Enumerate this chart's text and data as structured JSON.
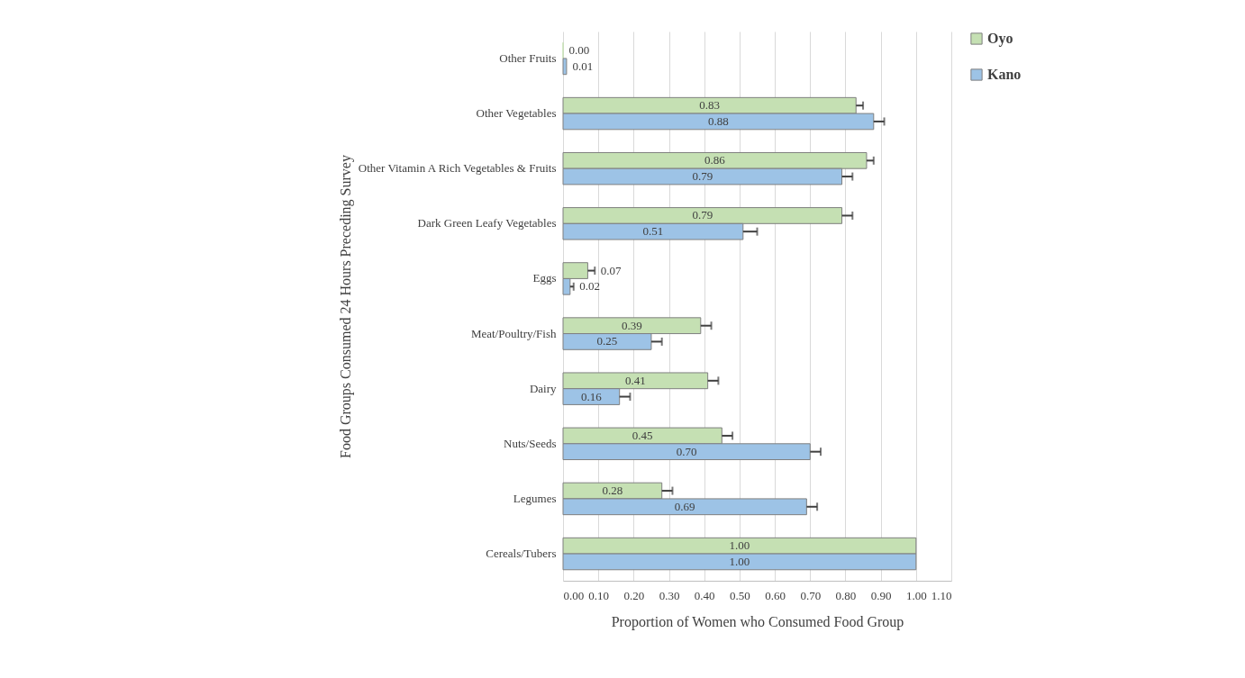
{
  "chart_data": {
    "type": "bar",
    "orientation": "horizontal",
    "xlabel": "Proportion of Women who Consumed Food Group",
    "ylabel": "Food Groups Consumed 24 Hours Preceding Survey",
    "categories": [
      "Other Fruits",
      "Other Vegetables",
      "Other Vitamin A Rich Vegetables & Fruits",
      "Dark Green Leafy Vegetables",
      "Eggs",
      "Meat/Poultry/Fish",
      "Dairy",
      "Nuts/Seeds",
      "Legumes",
      "Cereals/Tubers"
    ],
    "series": [
      {
        "name": "Oyo",
        "color": "#c5e0b3",
        "values": [
          0.0,
          0.83,
          0.86,
          0.79,
          0.07,
          0.39,
          0.41,
          0.45,
          0.28,
          1.0
        ],
        "value_labels": [
          "0.00",
          "0.83",
          "0.86",
          "0.79",
          "0.07",
          "0.39",
          "0.41",
          "0.45",
          "0.28",
          "1.00"
        ],
        "errors": [
          null,
          [
            0.83,
            0.85
          ],
          [
            0.86,
            0.88
          ],
          [
            0.79,
            0.82
          ],
          [
            0.07,
            0.09
          ],
          [
            0.39,
            0.42
          ],
          [
            0.41,
            0.44
          ],
          [
            0.45,
            0.48
          ],
          [
            0.28,
            0.31
          ],
          null
        ]
      },
      {
        "name": "Kano",
        "color": "#9dc3e6",
        "values": [
          0.01,
          0.88,
          0.79,
          0.51,
          0.02,
          0.25,
          0.16,
          0.7,
          0.69,
          1.0
        ],
        "value_labels": [
          "0.01",
          "0.88",
          "0.79",
          "0.51",
          "0.02",
          "0.25",
          "0.16",
          "0.70",
          "0.69",
          "1.00"
        ],
        "errors": [
          null,
          [
            0.88,
            0.91
          ],
          [
            0.79,
            0.82
          ],
          [
            0.51,
            0.55
          ],
          [
            0.02,
            0.03
          ],
          [
            0.25,
            0.28
          ],
          [
            0.16,
            0.19
          ],
          [
            0.7,
            0.73
          ],
          [
            0.69,
            0.72
          ],
          null
        ]
      }
    ],
    "xlim": [
      0,
      1.1
    ],
    "xticks": [
      {
        "value": 0,
        "label": "0.00"
      },
      {
        "value": 0.1,
        "label": "0.10"
      },
      {
        "value": 0.2,
        "label": "0.20"
      },
      {
        "value": 0.3,
        "label": "0.30"
      },
      {
        "value": 0.4,
        "label": "0.40"
      },
      {
        "value": 0.5,
        "label": "0.50"
      },
      {
        "value": 0.6,
        "label": "0.60"
      },
      {
        "value": 0.7,
        "label": "0.70"
      },
      {
        "value": 0.8,
        "label": "0.80"
      },
      {
        "value": 0.9,
        "label": "0.90"
      },
      {
        "value": 1.0,
        "label": "1.00"
      },
      {
        "value": 1.1,
        "label": "1.10"
      }
    ],
    "grid": "x",
    "legend": "right"
  }
}
